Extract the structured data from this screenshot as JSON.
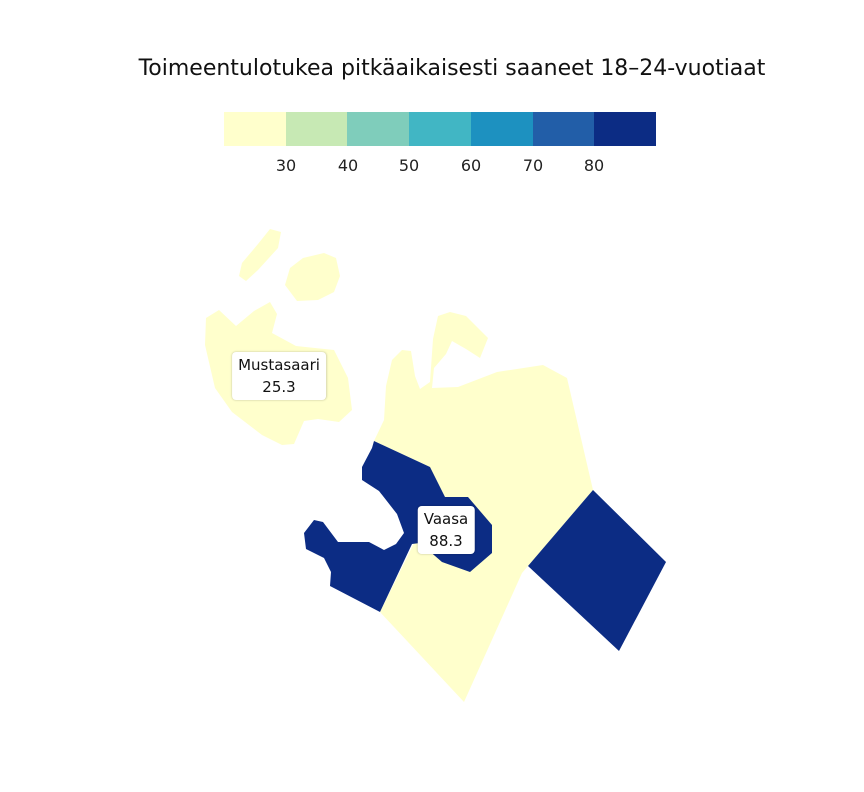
{
  "title": "Toimeentulotukea pitkäaikaisesti saaneet 18–24-vuotiaat",
  "legend": {
    "colors": [
      "#ffffcc",
      "#c7e9b4",
      "#7fcdbb",
      "#41b6c4",
      "#1d91c0",
      "#225ea8",
      "#0c2c84"
    ],
    "ticks": [
      "30",
      "40",
      "50",
      "60",
      "70",
      "80"
    ]
  },
  "regions": [
    {
      "name": "Mustasaari",
      "value": "25.3",
      "color": "#ffffcc"
    },
    {
      "name": "Vaasa",
      "value": "88.3",
      "color": "#0c2c84"
    }
  ]
}
